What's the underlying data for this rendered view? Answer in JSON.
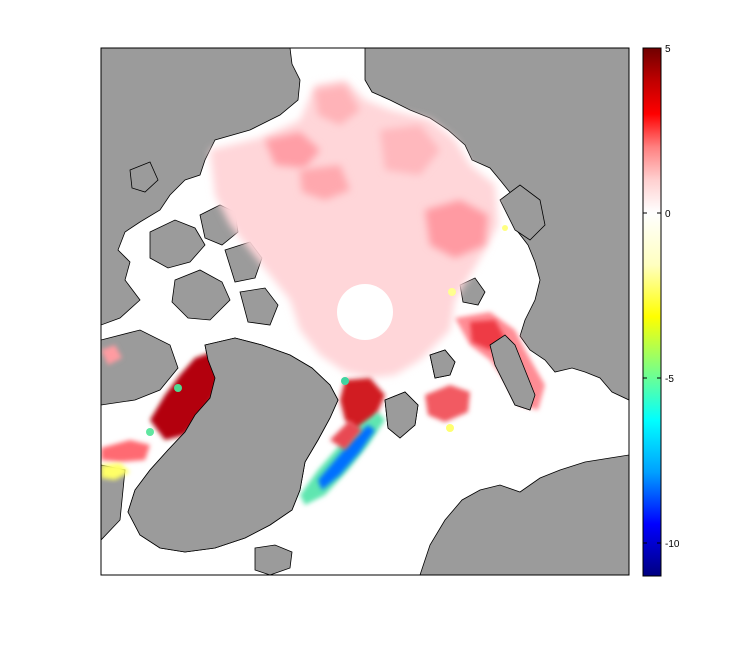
{
  "map": {
    "land_color": "#9b9b9b",
    "ocean_color": "#ffffff",
    "coastline_color": "#000000"
  },
  "colorbar": {
    "vmin": -11,
    "vmax": 5,
    "tick_labels": [
      "5",
      "0",
      "-5",
      "-10"
    ],
    "tick_values": [
      5,
      0,
      -5,
      -10
    ],
    "colors": [
      "#000080",
      "#0000ff",
      "#00a0ff",
      "#00ffff",
      "#80ff80",
      "#ffff00",
      "#ffffc0",
      "#ffffff",
      "#ffd0d0",
      "#ff8080",
      "#ff0000",
      "#c00000",
      "#700000"
    ]
  }
}
